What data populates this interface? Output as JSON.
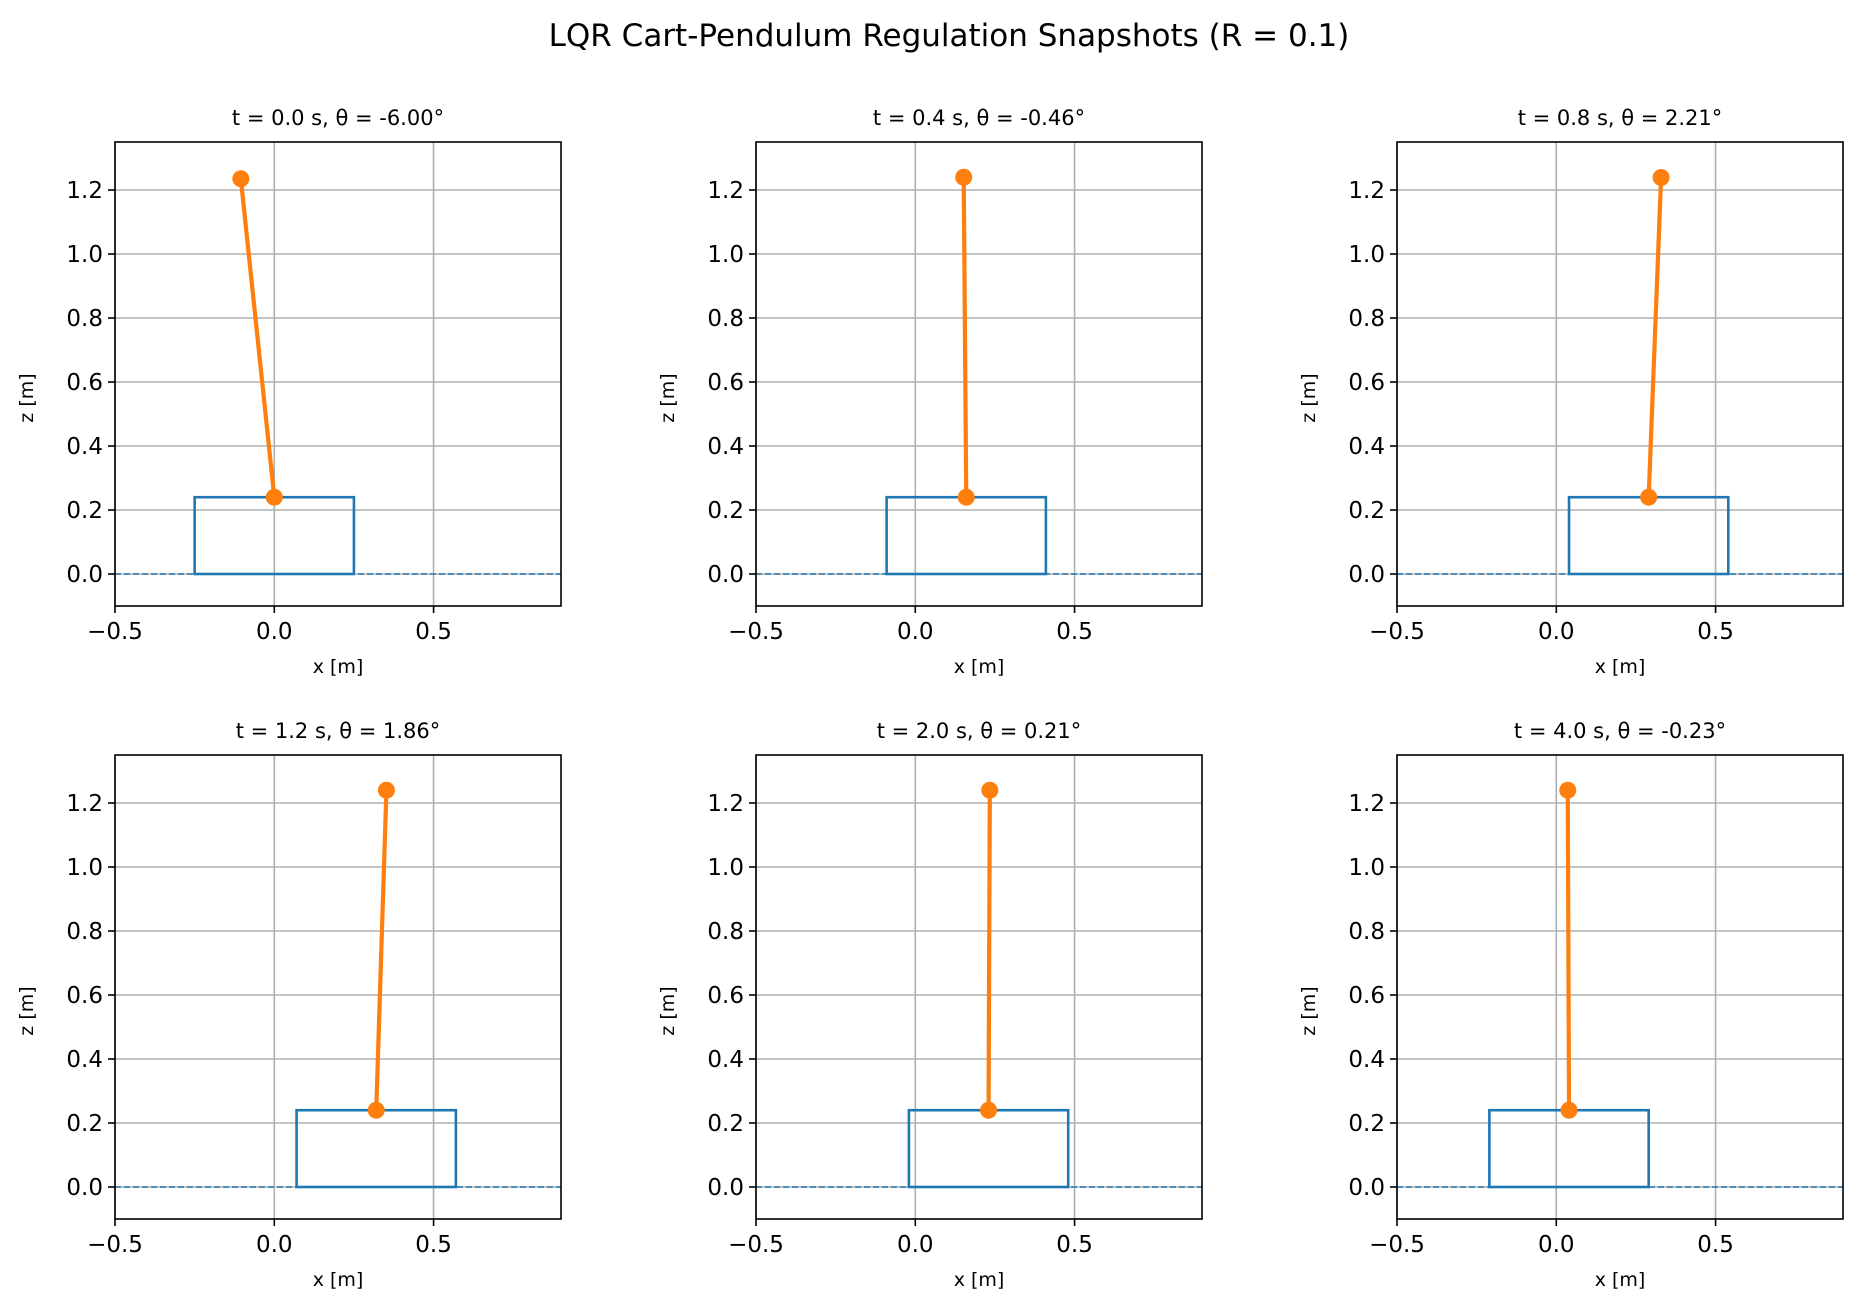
{
  "suptitle": "LQR Cart-Pendulum Regulation Snapshots (R = 0.1)",
  "colors": {
    "cart": "#1f77b4",
    "pendulum": "#ff7f0e",
    "grid": "#b0b0b0",
    "ground": "#1f77b4"
  },
  "chart_data": [
    {
      "type": "line",
      "title": "t = 0.0 s, θ = -6.00°",
      "xlabel": "x [m]",
      "ylabel": "z [m]",
      "xlim": [
        -0.5,
        0.9
      ],
      "ylim": [
        -0.1,
        1.35
      ],
      "xticks": [
        -0.5,
        0.0,
        0.5
      ],
      "xtick_labels": [
        "−0.5",
        "0.0",
        "0.5"
      ],
      "yticks": [
        0.0,
        0.2,
        0.4,
        0.6,
        0.8,
        1.0,
        1.2
      ],
      "ytick_labels": [
        "0.0",
        "0.2",
        "0.4",
        "0.6",
        "0.8",
        "1.0",
        "1.2"
      ],
      "grid": true,
      "ground_z": 0.0,
      "cart": {
        "x0": -0.25,
        "x1": 0.25,
        "z0": 0.0,
        "z1": 0.24
      },
      "pivot": {
        "x": 0.0,
        "z": 0.24
      },
      "bob": {
        "x": -0.105,
        "z": 1.235
      }
    },
    {
      "type": "line",
      "title": "t = 0.4 s, θ = -0.46°",
      "xlabel": "x [m]",
      "ylabel": "z [m]",
      "xlim": [
        -0.5,
        0.9
      ],
      "ylim": [
        -0.1,
        1.35
      ],
      "xticks": [
        -0.5,
        0.0,
        0.5
      ],
      "xtick_labels": [
        "−0.5",
        "0.0",
        "0.5"
      ],
      "yticks": [
        0.0,
        0.2,
        0.4,
        0.6,
        0.8,
        1.0,
        1.2
      ],
      "ytick_labels": [
        "0.0",
        "0.2",
        "0.4",
        "0.6",
        "0.8",
        "1.0",
        "1.2"
      ],
      "grid": true,
      "ground_z": 0.0,
      "cart": {
        "x0": -0.09,
        "x1": 0.41,
        "z0": 0.0,
        "z1": 0.24
      },
      "pivot": {
        "x": 0.16,
        "z": 0.24
      },
      "bob": {
        "x": 0.152,
        "z": 1.24
      }
    },
    {
      "type": "line",
      "title": "t = 0.8 s, θ = 2.21°",
      "xlabel": "x [m]",
      "ylabel": "z [m]",
      "xlim": [
        -0.5,
        0.9
      ],
      "ylim": [
        -0.1,
        1.35
      ],
      "xticks": [
        -0.5,
        0.0,
        0.5
      ],
      "xtick_labels": [
        "−0.5",
        "0.0",
        "0.5"
      ],
      "yticks": [
        0.0,
        0.2,
        0.4,
        0.6,
        0.8,
        1.0,
        1.2
      ],
      "ytick_labels": [
        "0.0",
        "0.2",
        "0.4",
        "0.6",
        "0.8",
        "1.0",
        "1.2"
      ],
      "grid": true,
      "ground_z": 0.0,
      "cart": {
        "x0": 0.04,
        "x1": 0.54,
        "z0": 0.0,
        "z1": 0.24
      },
      "pivot": {
        "x": 0.29,
        "z": 0.24
      },
      "bob": {
        "x": 0.329,
        "z": 1.239
      }
    },
    {
      "type": "line",
      "title": "t = 1.2 s, θ = 1.86°",
      "xlabel": "x [m]",
      "ylabel": "z [m]",
      "xlim": [
        -0.5,
        0.9
      ],
      "ylim": [
        -0.1,
        1.35
      ],
      "xticks": [
        -0.5,
        0.0,
        0.5
      ],
      "xtick_labels": [
        "−0.5",
        "0.0",
        "0.5"
      ],
      "yticks": [
        0.0,
        0.2,
        0.4,
        0.6,
        0.8,
        1.0,
        1.2
      ],
      "ytick_labels": [
        "0.0",
        "0.2",
        "0.4",
        "0.6",
        "0.8",
        "1.0",
        "1.2"
      ],
      "grid": true,
      "ground_z": 0.0,
      "cart": {
        "x0": 0.07,
        "x1": 0.57,
        "z0": 0.0,
        "z1": 0.24
      },
      "pivot": {
        "x": 0.32,
        "z": 0.24
      },
      "bob": {
        "x": 0.352,
        "z": 1.24
      }
    },
    {
      "type": "line",
      "title": "t = 2.0 s, θ = 0.21°",
      "xlabel": "x [m]",
      "ylabel": "z [m]",
      "xlim": [
        -0.5,
        0.9
      ],
      "ylim": [
        -0.1,
        1.35
      ],
      "xticks": [
        -0.5,
        0.0,
        0.5
      ],
      "xtick_labels": [
        "−0.5",
        "0.0",
        "0.5"
      ],
      "yticks": [
        0.0,
        0.2,
        0.4,
        0.6,
        0.8,
        1.0,
        1.2
      ],
      "ytick_labels": [
        "0.0",
        "0.2",
        "0.4",
        "0.6",
        "0.8",
        "1.0",
        "1.2"
      ],
      "grid": true,
      "ground_z": 0.0,
      "cart": {
        "x0": -0.02,
        "x1": 0.48,
        "z0": 0.0,
        "z1": 0.24
      },
      "pivot": {
        "x": 0.23,
        "z": 0.24
      },
      "bob": {
        "x": 0.234,
        "z": 1.24
      }
    },
    {
      "type": "line",
      "title": "t = 4.0 s, θ = -0.23°",
      "xlabel": "x [m]",
      "ylabel": "z [m]",
      "xlim": [
        -0.5,
        0.9
      ],
      "ylim": [
        -0.1,
        1.35
      ],
      "xticks": [
        -0.5,
        0.0,
        0.5
      ],
      "xtick_labels": [
        "−0.5",
        "0.0",
        "0.5"
      ],
      "yticks": [
        0.0,
        0.2,
        0.4,
        0.6,
        0.8,
        1.0,
        1.2
      ],
      "ytick_labels": [
        "0.0",
        "0.2",
        "0.4",
        "0.6",
        "0.8",
        "1.0",
        "1.2"
      ],
      "grid": true,
      "ground_z": 0.0,
      "cart": {
        "x0": -0.21,
        "x1": 0.29,
        "z0": 0.0,
        "z1": 0.24
      },
      "pivot": {
        "x": 0.04,
        "z": 0.24
      },
      "bob": {
        "x": 0.036,
        "z": 1.24
      }
    }
  ]
}
